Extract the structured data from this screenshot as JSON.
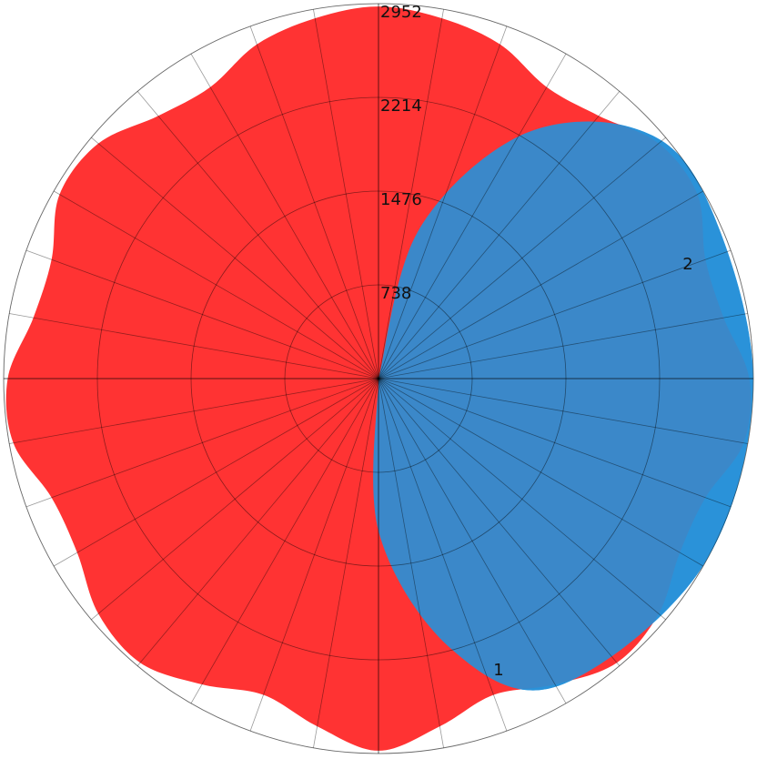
{
  "chart_data": {
    "type": "area",
    "subtype": "polar",
    "title": "",
    "radial_axis": {
      "range": [
        0,
        2952
      ],
      "tick_values": [
        738,
        1476,
        2214,
        2952
      ],
      "tick_labels": [
        "738",
        "1476",
        "2214",
        "2952"
      ]
    },
    "angular_axis": {
      "sectors": 36,
      "grid": true
    },
    "annotations": [
      {
        "text": "1",
        "series_index": 0
      },
      {
        "text": "2",
        "series_index": 1
      }
    ],
    "series": [
      {
        "color": "#2bb5ff",
        "theta_deg": [
          0,
          15,
          30,
          45,
          60,
          90,
          120,
          150,
          165,
          180,
          195,
          210,
          225,
          240,
          270,
          300,
          315,
          330,
          345,
          360
        ],
        "r": [
          0,
          1200,
          2200,
          2800,
          2950,
          2950,
          2950,
          2800,
          2200,
          1200,
          0,
          0,
          0,
          0,
          0,
          0,
          0,
          0,
          0,
          0
        ]
      },
      {
        "color": "#ff3333",
        "theta_deg": [
          0,
          10,
          20,
          30,
          40,
          50,
          60,
          70,
          80,
          90,
          100,
          110,
          120,
          130,
          140,
          150,
          160,
          170,
          180,
          190,
          200,
          210,
          220,
          230,
          240,
          250,
          260,
          270,
          280,
          290,
          300,
          310,
          320,
          330,
          340,
          350
        ],
        "r": [
          2930,
          2880,
          2800,
          2650,
          2700,
          2880,
          2900,
          2740,
          2760,
          2920,
          2920,
          2740,
          2740,
          2880,
          2920,
          2780,
          2650,
          2780,
          2930,
          2780,
          2650,
          2780,
          2920,
          2880,
          2740,
          2740,
          2920,
          2920,
          2760,
          2740,
          2900,
          2880,
          2700,
          2650,
          2800,
          2880
        ]
      }
    ]
  }
}
